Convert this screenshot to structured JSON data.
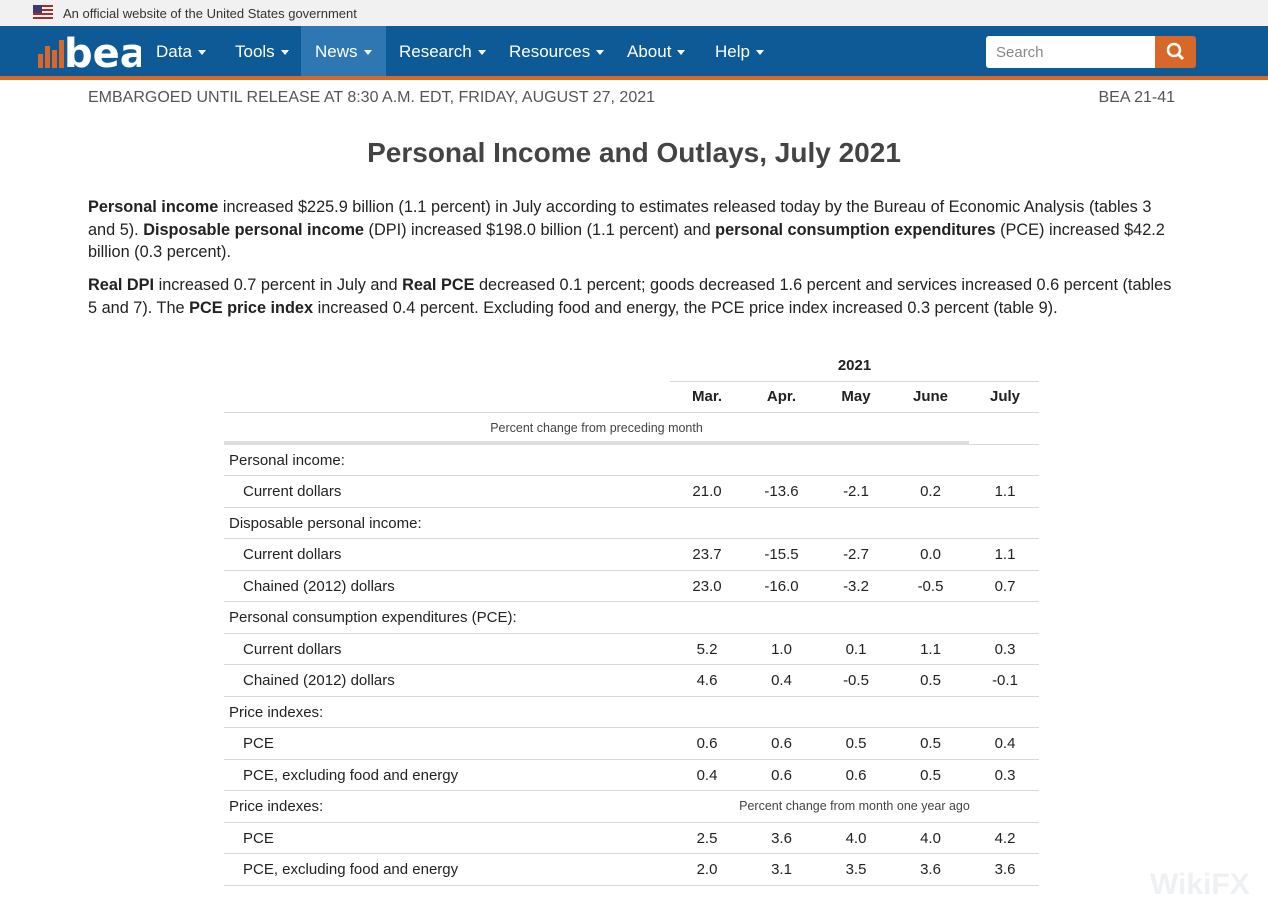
{
  "banner": "An official website of the United States government",
  "nav": {
    "logo": "bea",
    "items": [
      "Data",
      "Tools",
      "News",
      "Research",
      "Resources",
      "About",
      "Help"
    ],
    "active": "News",
    "search_placeholder": "Search"
  },
  "header": {
    "embargo": "EMBARGOED UNTIL RELEASE AT 8:30 A.M. EDT, FRIDAY, AUGUST 27, 2021",
    "release": "BEA 21-41",
    "title": "Personal Income and Outlays, July 2021"
  },
  "paragraphs": [
    [
      {
        "bold": "Personal income"
      },
      " increased $225.9 billion (1.1 percent) in July according to estimates released today by the Bureau of Economic Analysis (tables 3 and 5). ",
      {
        "bold": "Disposable personal income"
      },
      " (DPI) increased $198.0 billion (1.1 percent) and ",
      {
        "bold": "personal consumption expenditures"
      },
      " (PCE) increased $42.2 billion (0.3 percent)."
    ],
    [
      {
        "bold": "Real DPI"
      },
      " increased 0.7 percent in July and ",
      {
        "bold": "Real PCE"
      },
      " decreased 0.1 percent; goods decreased 1.6 percent and services increased 0.6 percent (tables 5 and 7). The ",
      {
        "bold": "PCE price index"
      },
      " increased 0.4 percent. Excluding food and energy, the PCE price index increased 0.3 percent (table 9)."
    ]
  ],
  "table": {
    "year": "2021",
    "columns": [
      "Mar.",
      "Apr.",
      "May",
      "June",
      "July"
    ],
    "subheader": "Percent change from preceding month",
    "rows": [
      {
        "label": "Personal income:"
      },
      {
        "label": "Current dollars",
        "values": [
          "21.0",
          "-13.6",
          "-2.1",
          "0.2",
          "1.1"
        ]
      },
      {
        "label": "Disposable personal income:"
      },
      {
        "label": "Current dollars",
        "values": [
          "23.7",
          "-15.5",
          "-2.7",
          "0.0",
          "1.1"
        ]
      },
      {
        "label": "Chained (2012) dollars",
        "values": [
          "23.0",
          "-16.0",
          "-3.2",
          "-0.5",
          "0.7"
        ]
      },
      {
        "label": "Personal consumption expenditures (PCE):"
      },
      {
        "label": "Current dollars",
        "values": [
          "5.2",
          "1.0",
          "0.1",
          "1.1",
          "0.3"
        ]
      },
      {
        "label": "Chained (2012) dollars",
        "values": [
          "4.6",
          "0.4",
          "-0.5",
          "0.5",
          "-0.1"
        ]
      },
      {
        "label": "Price indexes:"
      },
      {
        "label": "PCE",
        "values": [
          "0.6",
          "0.6",
          "0.5",
          "0.5",
          "0.4"
        ]
      },
      {
        "label": "PCE, excluding food and energy",
        "values": [
          "0.4",
          "0.6",
          "0.6",
          "0.5",
          "0.3"
        ]
      },
      {
        "label": "Price indexes:",
        "note": "Percent change from month one year ago"
      },
      {
        "label": "PCE",
        "values": [
          "2.5",
          "3.6",
          "4.0",
          "4.0",
          "4.2"
        ]
      },
      {
        "label": "PCE, excluding food and energy",
        "values": [
          "2.0",
          "3.1",
          "3.5",
          "3.6",
          "3.6"
        ]
      }
    ]
  },
  "watermark": "WikiFX"
}
